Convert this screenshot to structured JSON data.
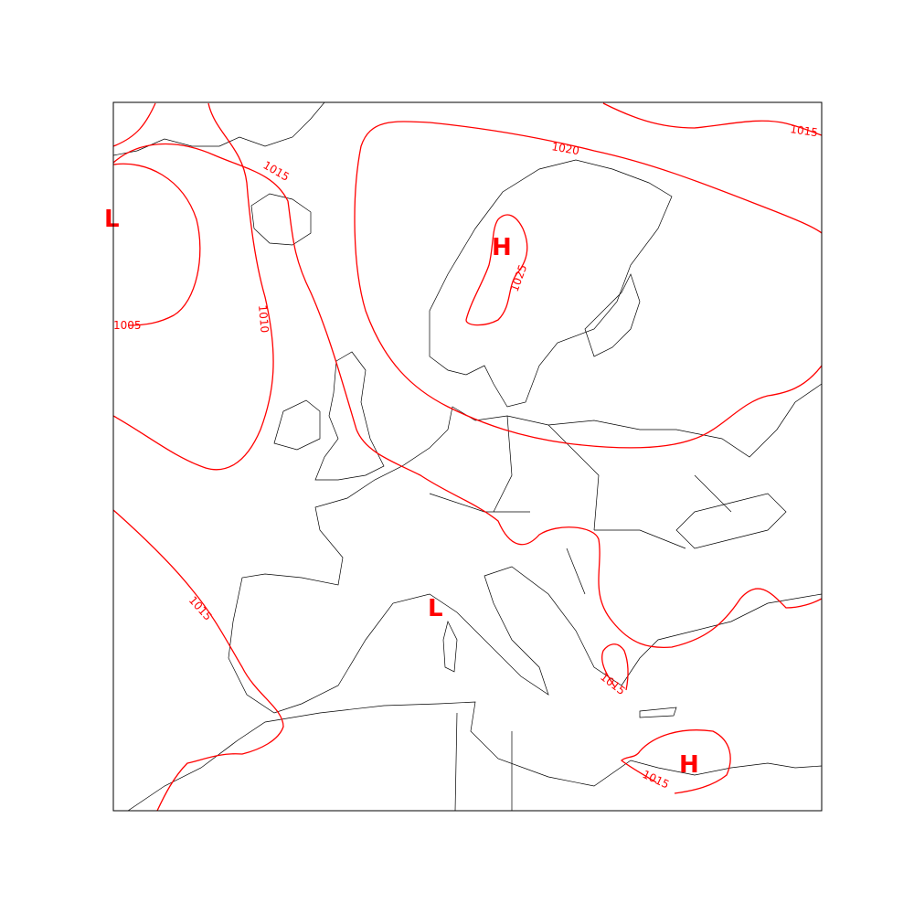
{
  "map": {
    "type": "surface pressure isobar map",
    "region": "Europe",
    "isobar_color": "#ff0000",
    "coastline_color": "#000000",
    "isobar_labels": [
      {
        "id": "iso-1005-west",
        "text": "1005"
      },
      {
        "id": "iso-1010-west",
        "text": "1010"
      },
      {
        "id": "iso-1015-north",
        "text": "1015"
      },
      {
        "id": "iso-1020",
        "text": "1020"
      },
      {
        "id": "iso-1025",
        "text": "1025"
      },
      {
        "id": "iso-1015-ne",
        "text": "1015"
      },
      {
        "id": "iso-1015-sw",
        "text": "1015"
      },
      {
        "id": "iso-1015-greece",
        "text": "1015"
      },
      {
        "id": "iso-1015-africa",
        "text": "1015"
      }
    ],
    "pressure_systems": [
      {
        "id": "low-atlantic",
        "text": "L"
      },
      {
        "id": "high-scandinavia",
        "text": "H"
      },
      {
        "id": "low-mediterranean",
        "text": "L"
      },
      {
        "id": "high-africa",
        "text": "H"
      }
    ]
  }
}
